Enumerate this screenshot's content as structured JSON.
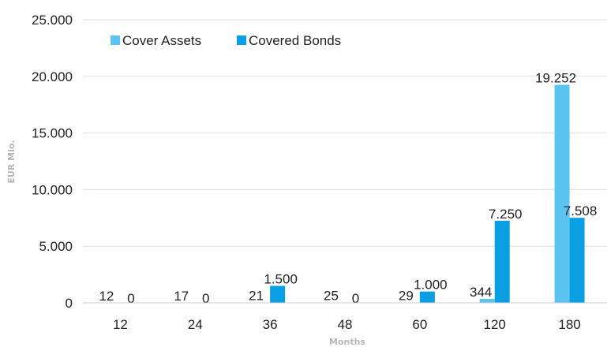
{
  "chart_data": {
    "type": "bar",
    "categories": [
      "12",
      "24",
      "36",
      "48",
      "60",
      "120",
      "180"
    ],
    "series": [
      {
        "name": "Cover Assets",
        "color": "#5bc3f0",
        "values": [
          12,
          17,
          21,
          25,
          29,
          344,
          19252
        ],
        "labels": [
          "12",
          "17",
          "21",
          "25",
          "29",
          "344",
          "19.252"
        ]
      },
      {
        "name": "Covered Bonds",
        "color": "#0a9fe2",
        "values": [
          0,
          0,
          1500,
          0,
          1000,
          7250,
          7508
        ],
        "labels": [
          "0",
          "0",
          "1.500",
          "0",
          "1.000",
          "7.250",
          "7.508"
        ]
      }
    ],
    "xlabel": "Months",
    "ylabel": "EUR Mio.",
    "ylim": [
      0,
      25000
    ],
    "yticks": [
      0,
      5000,
      10000,
      15000,
      20000,
      25000
    ],
    "ytick_labels": [
      "0",
      "5.000",
      "10.000",
      "15.000",
      "20.000",
      "25.000"
    ],
    "grid": true,
    "legend_position": "top-left"
  }
}
